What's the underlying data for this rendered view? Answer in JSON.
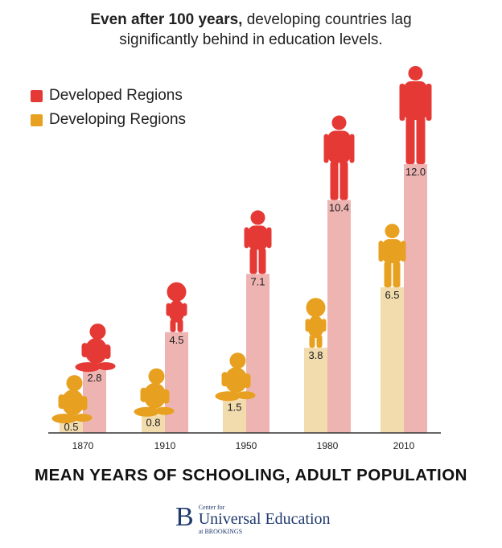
{
  "header": {
    "title_bold": "Even after 100 years,",
    "title_rest": " developing countries lag",
    "title_line2": "significantly behind in education levels."
  },
  "legend": [
    {
      "label": "Developed Regions",
      "color": "#e53935"
    },
    {
      "label": "Developing Regions",
      "color": "#e8a020"
    }
  ],
  "subtitle": "MEAN YEARS OF SCHOOLING, ADULT POPULATION",
  "logo": {
    "letter": "B",
    "line1": "Center for",
    "line2": "Universal Education",
    "line3": "at BROOKINGS"
  },
  "chart_data": {
    "type": "bar",
    "categories": [
      "1870",
      "1910",
      "1950",
      "1980",
      "2010"
    ],
    "series": [
      {
        "name": "Developing Regions",
        "values": [
          0.5,
          0.8,
          1.5,
          3.8,
          6.5
        ],
        "bar_color": "#f2dcae",
        "figure_color": "#e8a020"
      },
      {
        "name": "Developed Regions",
        "values": [
          2.8,
          4.5,
          7.1,
          10.4,
          12.0
        ],
        "bar_color": "#eeb4b2",
        "figure_color": "#e53935"
      }
    ],
    "value_labels": [
      [
        "0.5",
        "0.8",
        "1.5",
        "3.8",
        "6.5"
      ],
      [
        "2.8",
        "4.5",
        "7.1",
        "10.4",
        "12.0"
      ]
    ],
    "ylim": [
      0,
      12
    ],
    "grid": false,
    "legend_position": "top-left"
  }
}
